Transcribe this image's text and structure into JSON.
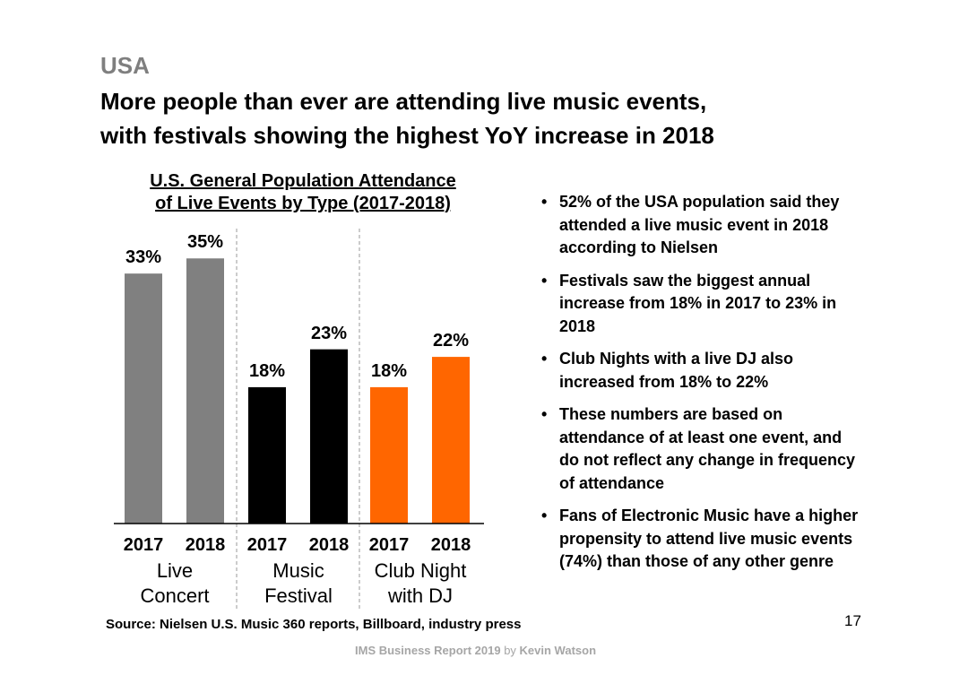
{
  "header": {
    "supertitle": "USA",
    "title_line1": "More people than ever are attending live music events,",
    "title_line2": "with festivals showing the highest YoY increase in 2018"
  },
  "chart_data": {
    "type": "bar",
    "title_line1": "U.S. General Population Attendance",
    "title_line2": "of Live Events by Type (2017-2018)",
    "ylim": [
      0,
      40
    ],
    "grid": false,
    "groups": [
      {
        "name_line1": "Live",
        "name_line2": "Concert",
        "color": "#808080",
        "bars": [
          {
            "x": "2017",
            "value": 33,
            "label": "33%"
          },
          {
            "x": "2018",
            "value": 35,
            "label": "35%"
          }
        ]
      },
      {
        "name_line1": "Music",
        "name_line2": "Festival",
        "color": "#000000",
        "bars": [
          {
            "x": "2017",
            "value": 18,
            "label": "18%"
          },
          {
            "x": "2018",
            "value": 23,
            "label": "23%"
          }
        ]
      },
      {
        "name_line1": "Club Night",
        "name_line2": "with DJ",
        "color": "#ff6600",
        "bars": [
          {
            "x": "2017",
            "value": 18,
            "label": "18%"
          },
          {
            "x": "2018",
            "value": 22,
            "label": "22%"
          }
        ]
      }
    ]
  },
  "bullets": [
    "52% of the USA population said they attended a live music event in 2018 according to Nielsen",
    "Festivals saw the biggest annual increase from 18% in 2017 to 23% in 2018",
    "Club Nights with a live DJ also increased from 18% to 22%",
    "These numbers are based on attendance of at least one event, and do not reflect any change in frequency of attendance",
    "Fans of Electronic Music have a higher propensity to attend live music events (74%) than those of any other genre"
  ],
  "source": "Source: Nielsen U.S. Music 360 reports, Billboard, industry press",
  "page_number": "17",
  "footer": {
    "part1": "IMS Business Report 2019",
    "by": "by",
    "author": "Kevin Watson"
  }
}
